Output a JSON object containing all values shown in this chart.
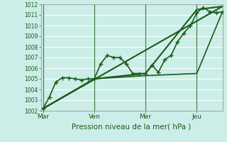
{
  "xlabel": "Pression niveau de la mer( hPa )",
  "bg_color": "#cceee8",
  "plot_bg_color": "#cceee8",
  "grid_color": "#ffffff",
  "line_color": "#1a5c1a",
  "ylim": [
    1002,
    1012
  ],
  "yticks": [
    1002,
    1003,
    1004,
    1005,
    1006,
    1007,
    1008,
    1009,
    1010,
    1011,
    1012
  ],
  "day_labels": [
    "Mar",
    "Ven",
    "Mer",
    "Jeu"
  ],
  "day_positions": [
    0,
    48,
    96,
    144
  ],
  "xlim_max": 168,
  "lines": [
    {
      "x": [
        0,
        6,
        12,
        18,
        24,
        30,
        36,
        42,
        48,
        54,
        60,
        66,
        72,
        78,
        84,
        90,
        96,
        102,
        108,
        114,
        120,
        126,
        132,
        138,
        144,
        150,
        156,
        162,
        168
      ],
      "y": [
        1002.2,
        1003.3,
        1004.7,
        1005.1,
        1005.1,
        1005.0,
        1004.9,
        1005.0,
        1005.0,
        1006.4,
        1007.2,
        1007.0,
        1007.0,
        1006.4,
        1005.5,
        1005.5,
        1005.5,
        1006.3,
        1005.6,
        1006.8,
        1007.2,
        1008.5,
        1009.3,
        1010.0,
        1011.2,
        1011.7,
        1011.3,
        1011.2,
        1011.3
      ],
      "marker": "+",
      "markersize": 4,
      "linewidth": 1.2
    },
    {
      "x": [
        0,
        48,
        96,
        144,
        168
      ],
      "y": [
        1002.2,
        1005.0,
        1005.5,
        1011.5,
        1011.8
      ],
      "marker": null,
      "markersize": 0,
      "linewidth": 1.5
    },
    {
      "x": [
        0,
        48,
        96,
        144,
        168
      ],
      "y": [
        1002.2,
        1005.0,
        1005.3,
        1005.5,
        1011.3
      ],
      "marker": null,
      "markersize": 0,
      "linewidth": 1.2
    },
    {
      "x": [
        0,
        168
      ],
      "y": [
        1002.2,
        1011.8
      ],
      "marker": null,
      "markersize": 0,
      "linewidth": 1.5
    }
  ]
}
